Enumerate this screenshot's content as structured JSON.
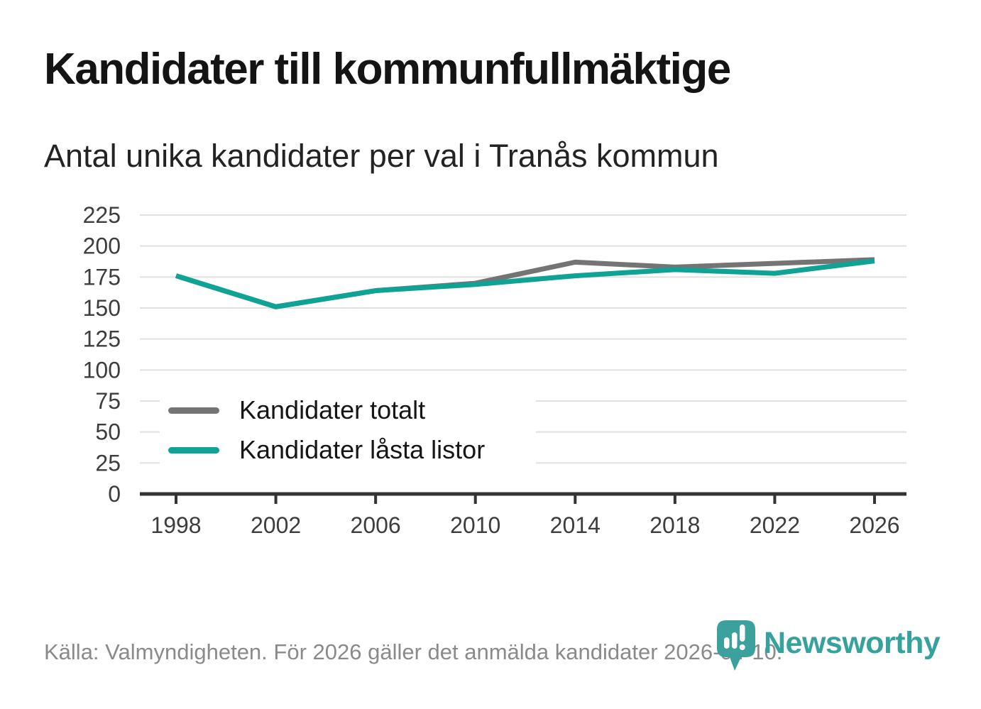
{
  "header": {
    "title": "Kandidater till kommunfullmäktige",
    "subtitle": "Antal unika kandidater per val i Tranås kommun"
  },
  "chart_data": {
    "type": "line",
    "title": "Kandidater till kommunfullmäktige",
    "subtitle": "Antal unika kandidater per val i Tranås kommun",
    "categories": [
      "1998",
      "2002",
      "2006",
      "2010",
      "2014",
      "2018",
      "2022",
      "2026"
    ],
    "series": [
      {
        "name": "Kandidater totalt",
        "color": "#747474",
        "values": [
          176,
          151,
          164,
          170,
          187,
          183,
          186,
          189
        ]
      },
      {
        "name": "Kandidater låsta listor",
        "color": "#0fa396",
        "values": [
          176,
          151,
          164,
          169,
          176,
          181,
          178,
          188
        ]
      }
    ],
    "xlabel": "",
    "ylabel": "",
    "ylim": [
      0,
      225
    ],
    "yticks": [
      0,
      25,
      50,
      75,
      100,
      125,
      150,
      175,
      200,
      225
    ],
    "grid": true,
    "legend_position": "inside-left"
  },
  "footer": {
    "source": "Källa: Valmyndigheten. För 2026 gäller det anmälda kandidater 2026-04-10.",
    "brand": "Newsworthy"
  },
  "colors": {
    "series_total": "#747474",
    "series_locked_lists": "#0fa396",
    "logo_teal": "#3ca19c",
    "source_text": "#8a8a8a",
    "axis_text": "#3d3d3d",
    "title_text": "#141414"
  }
}
